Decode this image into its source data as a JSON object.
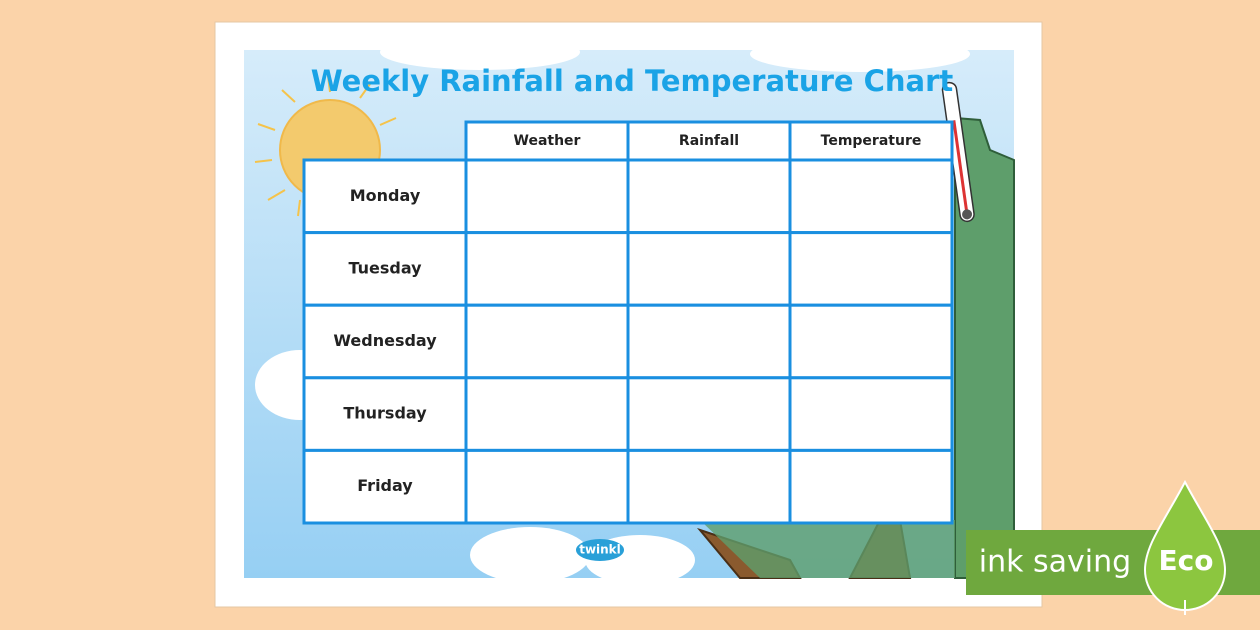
{
  "title": "Weekly Rainfall and Temperature Chart",
  "table": {
    "header": [
      "Weather",
      "Rainfall",
      "Temperature"
    ],
    "rows": [
      "Monday",
      "Tuesday",
      "Wednesday",
      "Thursday",
      "Friday"
    ]
  },
  "logo": "twinkl",
  "badge": {
    "text": "ink saving",
    "eco": "Eco"
  }
}
